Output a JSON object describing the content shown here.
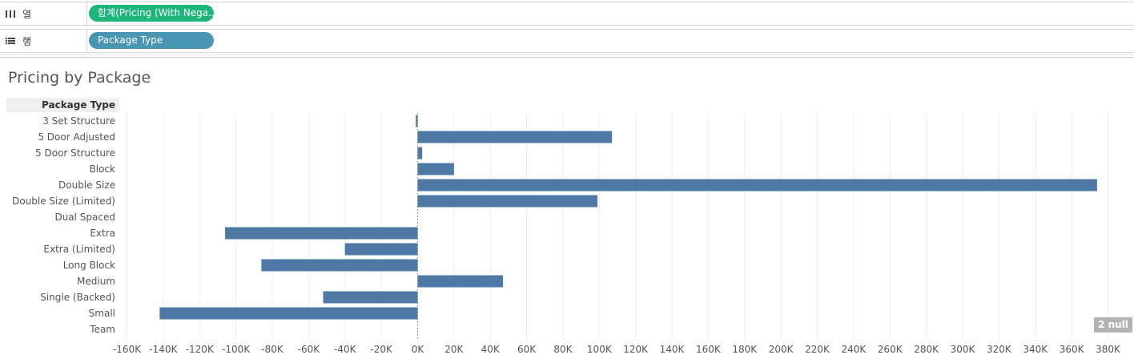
{
  "shelves": {
    "columns": {
      "label": "열",
      "icon": "columns-icon",
      "pill": "합계(Pricing (With Nega..",
      "pill_color": "#1cb57a"
    },
    "rows": {
      "label": "행",
      "icon": "rows-icon",
      "pill": "Package Type",
      "pill_color": "#4996b2"
    }
  },
  "null_indicator": "2 null",
  "chart_data": {
    "type": "bar",
    "orientation": "horizontal",
    "title": "Pricing by Package",
    "row_header": "Package Type",
    "categories": [
      "3 Set Structure",
      "5 Door Adjusted",
      "5 Door Structure",
      "Block",
      "Double Size",
      "Double Size (Limited)",
      "Dual Spaced",
      "Extra",
      "Extra (Limited)",
      "Long Block",
      "Medium",
      "Single (Backed)",
      "Small",
      "Team"
    ],
    "values": [
      -1000,
      107000,
      2500,
      20000,
      374000,
      99000,
      0,
      -106000,
      -40000,
      -86000,
      47000,
      -52000,
      -142000,
      0
    ],
    "xlim": [
      -162000,
      382000
    ],
    "xticks": [
      -160000,
      -140000,
      -120000,
      -100000,
      -80000,
      -60000,
      -40000,
      -20000,
      0,
      20000,
      40000,
      60000,
      80000,
      100000,
      120000,
      140000,
      160000,
      180000,
      200000,
      220000,
      240000,
      260000,
      280000,
      300000,
      320000,
      340000,
      360000,
      380000
    ],
    "xtick_labels": [
      "-160K",
      "-140K",
      "-120K",
      "-100K",
      "-80K",
      "-60K",
      "-40K",
      "-20K",
      "0K",
      "20K",
      "40K",
      "60K",
      "80K",
      "100K",
      "120K",
      "140K",
      "160K",
      "180K",
      "200K",
      "220K",
      "240K",
      "260K",
      "280K",
      "300K",
      "320K",
      "340K",
      "360K",
      "380K"
    ],
    "bar_color": "#4e79a7",
    "grid": true
  }
}
